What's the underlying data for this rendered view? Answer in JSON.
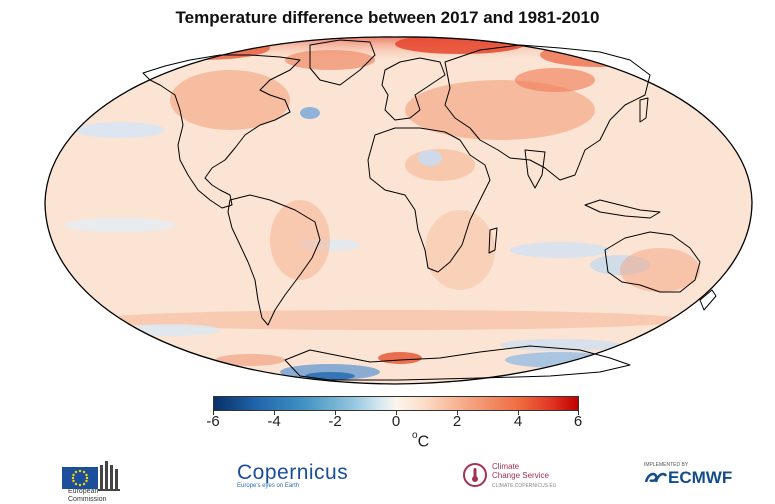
{
  "title": "Temperature difference between 2017 and 1981-2010",
  "colorbar": {
    "ticks": [
      "-6",
      "-4",
      "-2",
      "0",
      "2",
      "4",
      "6"
    ],
    "range": [
      -6,
      6
    ],
    "unit_super": "o",
    "unit": "C"
  },
  "logos": {
    "eu": {
      "line1": "European",
      "line2": "Commission"
    },
    "copernicus": {
      "main": "Copernicus",
      "sub": "Europe's eyes on Earth"
    },
    "c3s": {
      "line1": "Climate",
      "line2": "Change Service",
      "sub": "CLIMATE.COPERNICUS.EU"
    },
    "ecmwf": {
      "prefix": "IMPLEMENTED BY",
      "main": "ECMWF"
    }
  },
  "colors": {
    "ocean_base": "#fbe7d8",
    "warm": "#f08a64",
    "hot": "#e03322",
    "cool": "#c8dcef",
    "cold": "#2f6fb4",
    "coast": "#000000"
  }
}
